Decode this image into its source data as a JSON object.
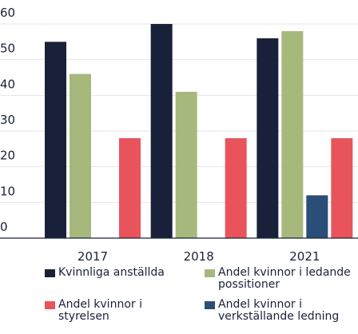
{
  "chart_data": {
    "type": "bar",
    "categories": [
      "2017",
      "2018",
      "2021"
    ],
    "series": [
      {
        "name": "Kvinnliga anställda",
        "color": "#19213a",
        "values": [
          55,
          60,
          56
        ]
      },
      {
        "name": "Andel kvinnor i ledande possitioner",
        "color": "#a7b87c",
        "values": [
          46,
          41,
          58
        ]
      },
      {
        "name": "Andel kvinnor i verkställande ledning",
        "color": "#2b4e78",
        "values": [
          null,
          null,
          12
        ]
      },
      {
        "name": "Andel kvinnor i styrelsen",
        "color": "#e9545c",
        "values": [
          28,
          28,
          28
        ]
      }
    ],
    "ylim": [
      0,
      60
    ],
    "yticks": [
      0,
      10,
      20,
      30,
      40,
      50,
      60
    ],
    "grid": true
  }
}
